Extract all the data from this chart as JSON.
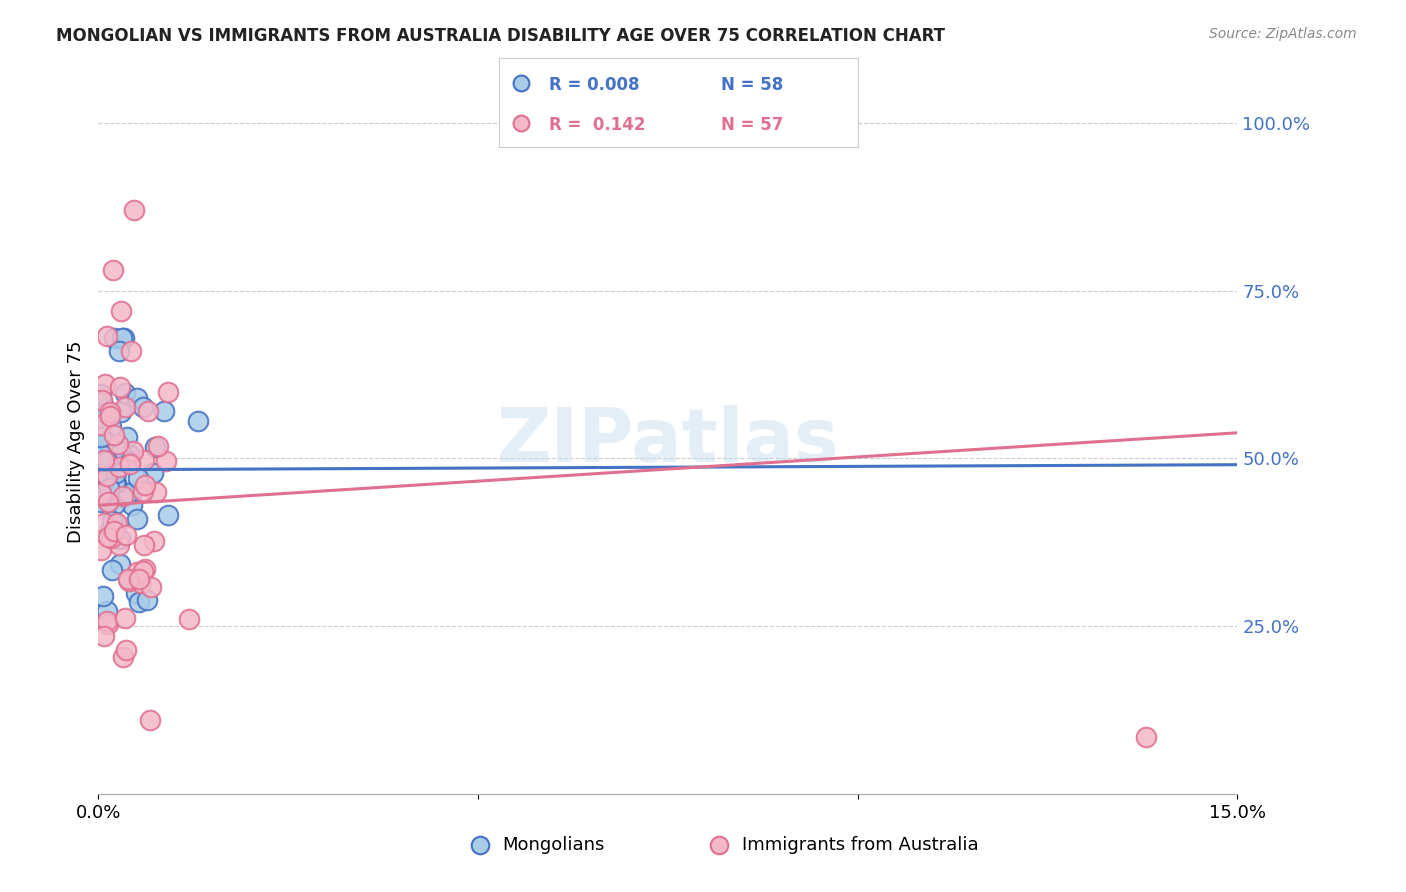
{
  "title": "MONGOLIAN VS IMMIGRANTS FROM AUSTRALIA DISABILITY AGE OVER 75 CORRELATION CHART",
  "source": "Source: ZipAtlas.com",
  "ylabel": "Disability Age Over 75",
  "legend_R_blue": "R = 0.008",
  "legend_N_blue": "N = 58",
  "legend_R_pink": "R =  0.142",
  "legend_N_pink": "N = 57",
  "blue_face_color": "#a8cce8",
  "pink_face_color": "#f4b8c8",
  "blue_edge_color": "#4472c4",
  "pink_edge_color": "#e07090",
  "blue_line_color": "#4472c4",
  "pink_line_color": "#e07090",
  "right_axis_color": "#4472c4",
  "watermark": "ZIPatlas",
  "xlim": [
    0.0,
    0.15
  ],
  "ylim": [
    0.0,
    1.05
  ],
  "xtick_positions": [
    0.0,
    0.05,
    0.1,
    0.15
  ],
  "xtick_labels": [
    "0.0%",
    "",
    "",
    "15.0%"
  ],
  "yticks_right": [
    1.0,
    0.75,
    0.5,
    0.25
  ],
  "ytick_right_labels": [
    "100.0%",
    "75.0%",
    "50.0%",
    "25.0%"
  ],
  "blue_intercept": 0.483,
  "blue_slope": 0.05,
  "pink_intercept": 0.43,
  "pink_slope": 0.72
}
